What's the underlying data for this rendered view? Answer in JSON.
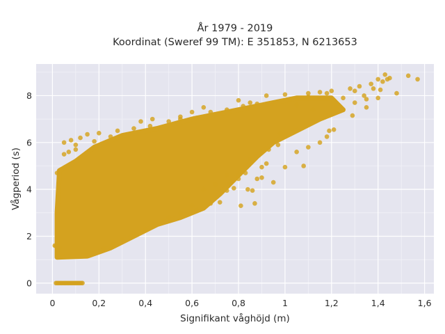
{
  "chart_data": {
    "type": "scatter",
    "title_lines": [
      "År 1979 - 2019",
      "Koordinat (Sweref 99 TM): E 351853, N 6213653"
    ],
    "xlabel": "Signifikant våghöjd (m)",
    "ylabel": "Vågperiod (s)",
    "xlim": [
      -0.07,
      1.64
    ],
    "ylim": [
      -0.45,
      9.35
    ],
    "x_ticks": [
      {
        "value": 0,
        "label": "0"
      },
      {
        "value": 0.2,
        "label": "0,2"
      },
      {
        "value": 0.4,
        "label": "0,4"
      },
      {
        "value": 0.6,
        "label": "0,6"
      },
      {
        "value": 0.8,
        "label": "0,8"
      },
      {
        "value": 1.0,
        "label": "1"
      },
      {
        "value": 1.2,
        "label": "1,2"
      },
      {
        "value": 1.4,
        "label": "1,4"
      },
      {
        "value": 1.6,
        "label": "1,6"
      }
    ],
    "y_ticks": [
      {
        "value": 0,
        "label": "0"
      },
      {
        "value": 2,
        "label": "2"
      },
      {
        "value": 4,
        "label": "4"
      },
      {
        "value": 6,
        "label": "6"
      },
      {
        "value": 8,
        "label": "8"
      }
    ],
    "grid": true,
    "marker_color": "#D4A21F",
    "background_color": "#E5E5EF",
    "dense_cloud_outline": [
      [
        0.02,
        1.1
      ],
      [
        0.15,
        1.15
      ],
      [
        0.25,
        1.5
      ],
      [
        0.35,
        2.0
      ],
      [
        0.45,
        2.5
      ],
      [
        0.55,
        2.8
      ],
      [
        0.65,
        3.2
      ],
      [
        0.72,
        3.8
      ],
      [
        0.8,
        4.6
      ],
      [
        0.88,
        5.4
      ],
      [
        0.95,
        6.0
      ],
      [
        1.05,
        6.5
      ],
      [
        1.15,
        7.0
      ],
      [
        1.25,
        7.4
      ],
      [
        1.2,
        7.9
      ],
      [
        1.05,
        7.9
      ],
      [
        0.9,
        7.6
      ],
      [
        0.75,
        7.3
      ],
      [
        0.6,
        7.0
      ],
      [
        0.45,
        6.6
      ],
      [
        0.3,
        6.3
      ],
      [
        0.18,
        5.8
      ],
      [
        0.1,
        5.2
      ],
      [
        0.03,
        4.8
      ],
      [
        0.02,
        3.0
      ]
    ],
    "points": [
      [
        0.02,
        1.55
      ],
      [
        0.01,
        1.6
      ],
      [
        0.03,
        1.52
      ],
      [
        0.015,
        1.58
      ],
      [
        0.02,
        4.7
      ],
      [
        0.05,
        5.5
      ],
      [
        0.08,
        6.1
      ],
      [
        0.1,
        5.9
      ],
      [
        0.12,
        6.2
      ],
      [
        0.15,
        6.35
      ],
      [
        0.2,
        6.4
      ],
      [
        0.28,
        6.5
      ],
      [
        0.35,
        6.6
      ],
      [
        0.42,
        6.7
      ],
      [
        0.5,
        6.9
      ],
      [
        0.55,
        7.0
      ],
      [
        0.62,
        7.05
      ],
      [
        0.7,
        7.2
      ],
      [
        0.75,
        7.4
      ],
      [
        0.82,
        7.55
      ],
      [
        0.88,
        7.65
      ],
      [
        0.95,
        7.7
      ],
      [
        1.02,
        7.85
      ],
      [
        1.1,
        7.95
      ],
      [
        1.18,
        8.1
      ],
      [
        0.6,
        7.3
      ],
      [
        0.65,
        7.5
      ],
      [
        0.8,
        7.8
      ],
      [
        0.92,
        8.0
      ],
      [
        1.0,
        8.05
      ],
      [
        1.1,
        8.1
      ],
      [
        1.15,
        8.15
      ],
      [
        1.2,
        8.2
      ],
      [
        1.22,
        7.6
      ],
      [
        1.25,
        7.9
      ],
      [
        1.28,
        8.3
      ],
      [
        1.3,
        8.2
      ],
      [
        1.32,
        8.4
      ],
      [
        1.34,
        8.0
      ],
      [
        1.35,
        7.85
      ],
      [
        1.37,
        8.5
      ],
      [
        1.38,
        8.3
      ],
      [
        1.4,
        8.7
      ],
      [
        1.41,
        8.25
      ],
      [
        1.42,
        8.6
      ],
      [
        1.43,
        8.9
      ],
      [
        1.44,
        8.7
      ],
      [
        1.45,
        8.75
      ],
      [
        1.48,
        8.1
      ],
      [
        1.53,
        8.85
      ],
      [
        1.57,
        8.7
      ],
      [
        1.29,
        7.15
      ],
      [
        1.21,
        6.55
      ],
      [
        1.19,
        6.5
      ],
      [
        1.12,
        7.4
      ],
      [
        1.05,
        7.6
      ],
      [
        1.35,
        7.5
      ],
      [
        1.3,
        7.7
      ],
      [
        1.4,
        7.9
      ],
      [
        0.85,
        5.3
      ],
      [
        0.9,
        4.95
      ],
      [
        0.92,
        5.1
      ],
      [
        0.95,
        6.0
      ],
      [
        0.98,
        6.4
      ],
      [
        0.8,
        4.6
      ],
      [
        0.83,
        4.7
      ],
      [
        0.78,
        4.05
      ],
      [
        0.7,
        4.2
      ],
      [
        0.75,
        3.95
      ],
      [
        0.65,
        4.0
      ],
      [
        0.72,
        3.45
      ],
      [
        0.68,
        3.4
      ],
      [
        0.6,
        3.3
      ],
      [
        0.55,
        3.0
      ],
      [
        0.5,
        2.8
      ],
      [
        0.46,
        2.55
      ],
      [
        0.4,
        2.3
      ],
      [
        0.36,
        2.1
      ],
      [
        0.3,
        1.85
      ],
      [
        0.26,
        1.65
      ],
      [
        0.22,
        1.5
      ],
      [
        0.62,
        3.1
      ],
      [
        0.58,
        2.95
      ],
      [
        0.87,
        3.4
      ],
      [
        0.81,
        3.3
      ],
      [
        0.76,
        4.2
      ],
      [
        0.88,
        4.45
      ],
      [
        0.9,
        4.5
      ],
      [
        1.05,
        5.6
      ],
      [
        1.08,
        5.0
      ],
      [
        1.1,
        5.8
      ],
      [
        1.15,
        6.0
      ],
      [
        1.18,
        6.25
      ],
      [
        0.97,
        5.9
      ],
      [
        0.93,
        5.7
      ],
      [
        0.05,
        6.0
      ],
      [
        0.1,
        5.7
      ],
      [
        0.07,
        5.6
      ],
      [
        0.18,
        6.05
      ],
      [
        0.25,
        6.25
      ],
      [
        0.86,
        3.95
      ],
      [
        0.84,
        4.0
      ],
      [
        0.8,
        4.45
      ],
      [
        0.75,
        4.6
      ],
      [
        0.95,
        4.3
      ],
      [
        1.0,
        4.95
      ],
      [
        0.43,
        7.0
      ],
      [
        0.38,
        6.9
      ],
      [
        0.55,
        7.1
      ],
      [
        0.68,
        7.3
      ],
      [
        0.85,
        7.7
      ]
    ],
    "zero_row": {
      "y": 0,
      "x_from": 0.015,
      "x_to": 0.13
    }
  }
}
